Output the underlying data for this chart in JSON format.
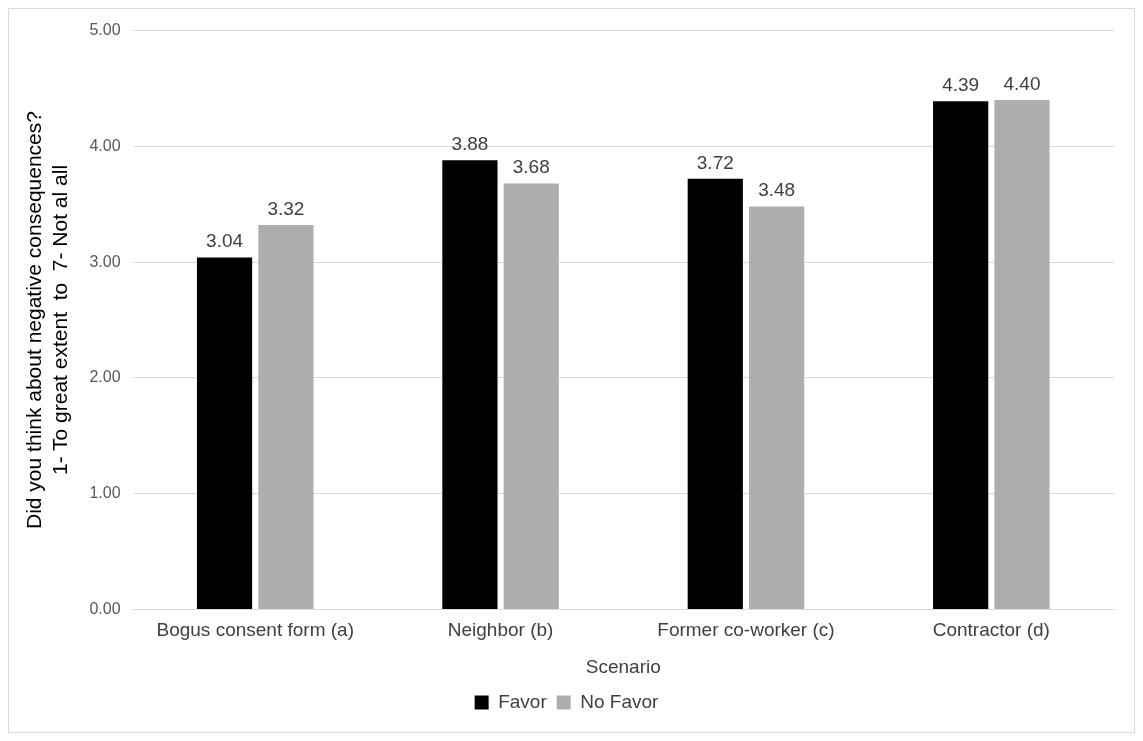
{
  "chart_data": {
    "type": "bar",
    "xlabel": "Scenario",
    "ylabel": "Did you think about negative consequences?\n1- To great extent  to  7- Not al all",
    "categories": [
      "Bogus consent form (a)",
      "Neighbor (b)",
      "Former co-worker (c)",
      "Contractor (d)"
    ],
    "series": [
      {
        "name": "Favor",
        "color": "#000000",
        "values": [
          3.04,
          3.88,
          3.72,
          4.39
        ],
        "value_labels": [
          "3.04",
          "3.88",
          "3.72",
          "4.39"
        ]
      },
      {
        "name": "No Favor",
        "color": "#aeaeae",
        "values": [
          3.32,
          3.68,
          3.48,
          4.4
        ],
        "value_labels": [
          "3.32",
          "3.68",
          "3.48",
          "4.40"
        ]
      }
    ],
    "ylim": [
      0,
      5
    ],
    "yticks": [
      {
        "value": 0,
        "label": "0.00"
      },
      {
        "value": 1,
        "label": "1.00"
      },
      {
        "value": 2,
        "label": "2.00"
      },
      {
        "value": 3,
        "label": "3.00"
      },
      {
        "value": 4,
        "label": "4.00"
      },
      {
        "value": 5,
        "label": "5.00"
      }
    ],
    "grid": "y",
    "legend": "bottom"
  }
}
